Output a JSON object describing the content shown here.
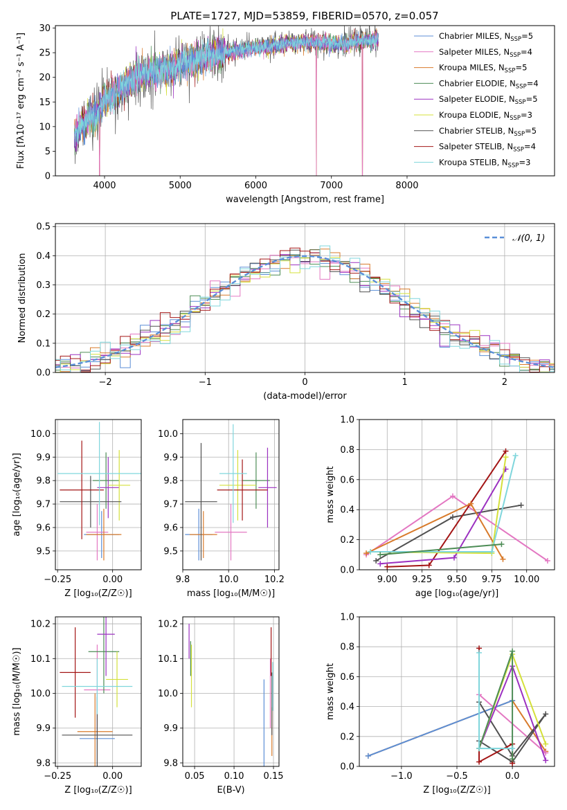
{
  "figure_title": "PLATE=1727, MJD=53859, FIBERID=0570, z=0.057",
  "series": [
    {
      "key": "chab_miles",
      "label": "Chabrier MILES, N",
      "n": "5",
      "color": "#5b8ed6"
    },
    {
      "key": "salp_miles",
      "label": "Salpeter MILES, N",
      "n": "4",
      "color": "#e377c2"
    },
    {
      "key": "krou_miles",
      "label": "Kroupa MILES, N",
      "n": "5",
      "color": "#d87a2a"
    },
    {
      "key": "chab_elodie",
      "label": "Chabrier ELODIE, N",
      "n": "4",
      "color": "#4c8c55"
    },
    {
      "key": "salp_elodie",
      "label": "Salpeter ELODIE, N",
      "n": "5",
      "color": "#9b30c0"
    },
    {
      "key": "krou_elodie",
      "label": "Kroupa ELODIE, N",
      "n": "3",
      "color": "#d4e03a"
    },
    {
      "key": "chab_stelib",
      "label": "Chabrier STELIB, N",
      "n": "5",
      "color": "#505050"
    },
    {
      "key": "salp_stelib",
      "label": "Salpeter STELIB, N",
      "n": "4",
      "color": "#a31515"
    },
    {
      "key": "krou_stelib",
      "label": "Kroupa STELIB, N",
      "n": "3",
      "color": "#7fd6dc"
    }
  ],
  "chart_data": [
    {
      "id": "spectrum",
      "type": "line",
      "xlabel": "wavelength [Angstrom, rest frame]",
      "ylabel": "Flux [fλ10⁻¹⁷ erg cm⁻² s⁻¹ A⁻¹]",
      "xlim": [
        3350,
        9950
      ],
      "ylim": [
        0,
        30.5
      ],
      "xticks": [
        4000,
        5000,
        6000,
        7000,
        8000
      ],
      "yticks": [
        0,
        5,
        10,
        15,
        20,
        25,
        30
      ],
      "x_range": [
        3600,
        7620
      ],
      "continuum": {
        "x": [
          3600,
          3700,
          3800,
          3900,
          4000,
          4100,
          4200,
          4400,
          4600,
          4800,
          5000,
          5200,
          5400,
          5600,
          5800,
          6000,
          6200,
          6400,
          6600,
          6800,
          7000,
          7200,
          7400,
          7600
        ],
        "y": [
          8.5,
          10,
          12,
          12.5,
          15.5,
          16.5,
          17.5,
          20,
          20.8,
          21.5,
          22.5,
          23.5,
          24.5,
          25,
          25.5,
          26,
          26.3,
          26.8,
          27.2,
          27.2,
          26.8,
          26.8,
          27.3,
          27.8
        ]
      },
      "dips": [
        {
          "x": 3934,
          "y": 0
        },
        {
          "x": 6800,
          "y": 0
        },
        {
          "x": 7410,
          "y": 0
        }
      ]
    },
    {
      "id": "residuals",
      "type": "histogram",
      "xlabel": "(data-model)/error",
      "ylabel": "Normed distribution",
      "xlim": [
        -2.5,
        2.5
      ],
      "ylim": [
        0,
        0.51
      ],
      "xticks": [
        -2,
        -1,
        0,
        1,
        2
      ],
      "yticks": [
        0.0,
        0.1,
        0.2,
        0.3,
        0.4,
        0.5
      ],
      "bin_width": 0.1,
      "reference": {
        "label": "𝒩(0, 1)",
        "mean": 0,
        "sigma": 1
      }
    },
    {
      "id": "age_vs_Z",
      "type": "errorbar",
      "xlabel": "Z [log₁₀(Z/Z☉)]",
      "ylabel": "age  [log₁₀(age/yr)]",
      "xlim": [
        -0.26,
        0.13
      ],
      "ylim": [
        9.42,
        10.06
      ],
      "xticks": [
        -0.25,
        0.0
      ],
      "yticks": [
        9.5,
        9.6,
        9.7,
        9.8,
        9.9,
        10.0
      ],
      "points": [
        {
          "s": "chab_miles",
          "x": -0.05,
          "xerr": 0.08,
          "y": 9.57,
          "yerr": 0.1
        },
        {
          "s": "salp_miles",
          "x": -0.07,
          "xerr": 0.05,
          "y": 9.58,
          "yerr": 0.12
        },
        {
          "s": "krou_miles",
          "x": -0.04,
          "xerr": 0.08,
          "y": 9.57,
          "yerr": 0.11
        },
        {
          "s": "chab_elodie",
          "x": -0.03,
          "xerr": 0.06,
          "y": 9.8,
          "yerr": 0.12
        },
        {
          "s": "salp_elodie",
          "x": -0.02,
          "xerr": 0.05,
          "y": 9.77,
          "yerr": 0.13
        },
        {
          "s": "krou_elodie",
          "x": 0.03,
          "xerr": 0.05,
          "y": 9.78,
          "yerr": 0.15
        },
        {
          "s": "chab_stelib",
          "x": -0.1,
          "xerr": 0.14,
          "y": 9.71,
          "yerr": 0.11
        },
        {
          "s": "salp_stelib",
          "x": -0.14,
          "xerr": 0.1,
          "y": 9.76,
          "yerr": 0.21
        },
        {
          "s": "krou_stelib",
          "x": -0.06,
          "xerr": 0.19,
          "y": 9.83,
          "yerr": 0.22
        }
      ]
    },
    {
      "id": "age_vs_mass",
      "type": "errorbar",
      "xlabel": "mass [log₁₀(M/M☉)]",
      "ylabel": "",
      "xlim": [
        9.8,
        10.22
      ],
      "ylim": [
        9.42,
        10.06
      ],
      "xticks": [
        9.8,
        10.0,
        10.2
      ],
      "yticks": [
        9.5,
        9.6,
        9.7,
        9.8,
        9.9,
        10.0
      ],
      "points": [
        {
          "s": "chab_miles",
          "x": 9.87,
          "xerr": 0.06,
          "y": 9.57,
          "yerr": 0.11
        },
        {
          "s": "salp_miles",
          "x": 10.01,
          "xerr": 0.07,
          "y": 9.58,
          "yerr": 0.12
        },
        {
          "s": "krou_miles",
          "x": 9.89,
          "xerr": 0.06,
          "y": 9.57,
          "yerr": 0.1
        },
        {
          "s": "chab_elodie",
          "x": 10.12,
          "xerr": 0.06,
          "y": 9.8,
          "yerr": 0.12
        },
        {
          "s": "salp_elodie",
          "x": 10.17,
          "xerr": 0.04,
          "y": 9.77,
          "yerr": 0.17
        },
        {
          "s": "krou_elodie",
          "x": 10.04,
          "xerr": 0.08,
          "y": 9.78,
          "yerr": 0.15
        },
        {
          "s": "chab_stelib",
          "x": 9.88,
          "xerr": 0.07,
          "y": 9.71,
          "yerr": 0.25
        },
        {
          "s": "salp_stelib",
          "x": 10.06,
          "xerr": 0.11,
          "y": 9.76,
          "yerr": 0.13
        },
        {
          "s": "krou_stelib",
          "x": 10.02,
          "xerr": 0.06,
          "y": 9.83,
          "yerr": 0.21
        }
      ]
    },
    {
      "id": "weight_vs_age",
      "type": "line",
      "xlabel": "age  [log₁₀(age/yr)]",
      "ylabel": "mass weight",
      "xlim": [
        8.8,
        10.2
      ],
      "ylim": [
        0,
        1.0
      ],
      "xticks": [
        9.0,
        9.25,
        9.5,
        9.75,
        10.0
      ],
      "yticks": [
        0.0,
        0.2,
        0.4,
        0.6,
        0.8,
        1.0
      ],
      "lines": [
        {
          "s": "salp_miles",
          "x": [
            8.85,
            9.47,
            10.15
          ],
          "y": [
            0.1,
            0.49,
            0.06
          ]
        },
        {
          "s": "chab_stelib",
          "x": [
            8.92,
            9.47,
            9.96
          ],
          "y": [
            0.06,
            0.35,
            0.43
          ]
        },
        {
          "s": "salp_stelib",
          "x": [
            9.0,
            9.3,
            9.85
          ],
          "y": [
            0.02,
            0.03,
            0.79
          ]
        },
        {
          "s": "krou_miles",
          "x": [
            8.85,
            9.6,
            9.83
          ],
          "y": [
            0.11,
            0.44,
            0.07
          ]
        },
        {
          "s": "salp_elodie",
          "x": [
            8.95,
            9.48,
            9.85
          ],
          "y": [
            0.04,
            0.08,
            0.67
          ]
        },
        {
          "s": "krou_elodie",
          "x": [
            8.88,
            9.75,
            9.85
          ],
          "y": [
            0.12,
            0.11,
            0.75
          ]
        },
        {
          "s": "krou_stelib",
          "x": [
            8.88,
            9.75,
            9.92
          ],
          "y": [
            0.12,
            0.12,
            0.76
          ]
        },
        {
          "s": "chab_elodie",
          "x": [
            8.95,
            9.82
          ],
          "y": [
            0.1,
            0.17
          ]
        }
      ]
    },
    {
      "id": "mass_vs_Z",
      "type": "errorbar",
      "xlabel": "Z [log₁₀(Z/Z☉)]",
      "ylabel": "mass [log₁₀(M/M☉)]",
      "xlim": [
        -0.26,
        0.13
      ],
      "ylim": [
        9.79,
        10.22
      ],
      "xticks": [
        -0.25,
        0.0
      ],
      "yticks": [
        9.8,
        9.9,
        10.0,
        10.1,
        10.2
      ],
      "points": [
        {
          "s": "chab_miles",
          "x": -0.07,
          "xerr": 0.08,
          "y": 9.87,
          "yerr": 0.13
        },
        {
          "s": "salp_miles",
          "x": -0.07,
          "xerr": 0.06,
          "y": 10.01,
          "yerr": 0.13
        },
        {
          "s": "krou_miles",
          "x": -0.08,
          "xerr": 0.08,
          "y": 9.89,
          "yerr": 0.11
        },
        {
          "s": "chab_elodie",
          "x": -0.04,
          "xerr": 0.07,
          "y": 10.12,
          "yerr": 0.12
        },
        {
          "s": "salp_elodie",
          "x": -0.03,
          "xerr": 0.04,
          "y": 10.17,
          "yerr": 0.12
        },
        {
          "s": "krou_elodie",
          "x": 0.02,
          "xerr": 0.05,
          "y": 10.04,
          "yerr": 0.08
        },
        {
          "s": "chab_stelib",
          "x": -0.07,
          "xerr": 0.16,
          "y": 9.88,
          "yerr": 0.11
        },
        {
          "s": "salp_stelib",
          "x": -0.17,
          "xerr": 0.07,
          "y": 10.06,
          "yerr": 0.13
        },
        {
          "s": "krou_stelib",
          "x": -0.07,
          "xerr": 0.16,
          "y": 10.02,
          "yerr": 0.08
        }
      ]
    },
    {
      "id": "mass_vs_EBV",
      "type": "errorbar",
      "xlabel": "E(B-V)",
      "ylabel": "",
      "xlim": [
        0.035,
        0.157
      ],
      "ylim": [
        9.79,
        10.22
      ],
      "xticks": [
        0.05,
        0.1,
        0.15
      ],
      "yticks": [
        9.8,
        9.9,
        10.0,
        10.1,
        10.2
      ],
      "points": [
        {
          "s": "chab_miles",
          "x": 0.138,
          "xerr": 0,
          "y": 9.9,
          "yerr": 0.14
        },
        {
          "s": "salp_miles",
          "x": 0.146,
          "xerr": 0,
          "y": 10.0,
          "yerr": 0.1
        },
        {
          "s": "krou_miles",
          "x": 0.148,
          "xerr": 0,
          "y": 9.89,
          "yerr": 0.07
        },
        {
          "s": "chab_elodie",
          "x": 0.045,
          "xerr": 0,
          "y": 10.1,
          "yerr": 0.05
        },
        {
          "s": "salp_elodie",
          "x": 0.043,
          "xerr": 0,
          "y": 10.15,
          "yerr": 0.05
        },
        {
          "s": "krou_elodie",
          "x": 0.046,
          "xerr": 0,
          "y": 10.05,
          "yerr": 0.09
        },
        {
          "s": "chab_stelib",
          "x": 0.148,
          "xerr": 0,
          "y": 9.97,
          "yerr": 0.09
        },
        {
          "s": "salp_stelib",
          "x": 0.147,
          "xerr": 0,
          "y": 10.12,
          "yerr": 0.07
        },
        {
          "s": "krou_stelib",
          "x": 0.149,
          "xerr": 0,
          "y": 10.02,
          "yerr": 0.07
        }
      ]
    },
    {
      "id": "weight_vs_Z",
      "type": "line",
      "xlabel": "Z [log₁₀(Z/Z☉)]",
      "ylabel": "mass weight",
      "xlim": [
        -1.38,
        0.38
      ],
      "ylim": [
        0,
        1.0
      ],
      "xticks": [
        -1.0,
        -0.5,
        0.0
      ],
      "yticks": [
        0.0,
        0.2,
        0.4,
        0.6,
        0.8,
        1.0
      ],
      "lines": [
        {
          "s": "krou_miles",
          "x": [
            -1.3,
            0.0,
            0.3
          ],
          "y": [
            0.07,
            0.44,
            0.1
          ]
        },
        {
          "s": "chab_miles",
          "x": [
            -1.3,
            0.0
          ],
          "y": [
            0.07,
            0.44
          ]
        },
        {
          "s": "salp_miles",
          "x": [
            -0.3,
            0.3
          ],
          "y": [
            0.48,
            0.09
          ]
        },
        {
          "s": "chab_stelib",
          "x": [
            -0.3,
            0.0,
            0.3,
            0.0,
            -0.3
          ],
          "y": [
            0.43,
            0.07,
            0.35,
            0.03,
            0.17
          ]
        },
        {
          "s": "salp_stelib",
          "x": [
            -0.3,
            -0.3,
            0.0,
            0.0
          ],
          "y": [
            0.79,
            0.03,
            0.15,
            0.02
          ]
        },
        {
          "s": "salp_elodie",
          "x": [
            -0.3,
            0.0,
            0.3
          ],
          "y": [
            0.12,
            0.67,
            0.04
          ]
        },
        {
          "s": "krou_elodie",
          "x": [
            -0.3,
            0.0,
            0.3
          ],
          "y": [
            0.12,
            0.75,
            0.15
          ]
        },
        {
          "s": "chab_elodie",
          "x": [
            -0.3,
            0.0,
            0.0
          ],
          "y": [
            0.12,
            0.77,
            0.05
          ]
        },
        {
          "s": "krou_stelib",
          "x": [
            -0.3,
            -0.3,
            0.0
          ],
          "y": [
            0.76,
            0.12,
            0.12
          ]
        }
      ]
    }
  ]
}
